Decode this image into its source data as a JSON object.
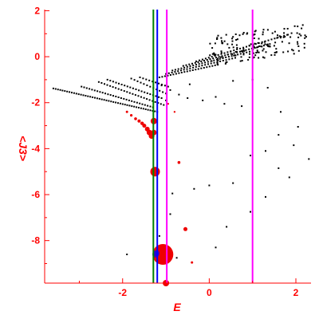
{
  "colors": {
    "axis": "#ff0000",
    "dots": "#000000",
    "highlight": "#ee0000",
    "vline_green": "#008000",
    "vline_blue": "#0000ff",
    "vline_magenta": "#ff00ff"
  },
  "chart_data": {
    "type": "scatter",
    "xlabel": "E",
    "ylabel": "<J3>",
    "xlim": [
      -3.8,
      2.35
    ],
    "ylim": [
      -9.85,
      2.05
    ],
    "xticks": [
      -2,
      0,
      2
    ],
    "yticks": [
      2,
      0,
      -2,
      -4,
      -6,
      -8
    ],
    "grid": false,
    "vertical_lines": [
      {
        "x": -1.29,
        "color": "#008000"
      },
      {
        "x": -1.2,
        "color": "#0000ff"
      },
      {
        "x": -0.98,
        "color": "#ff00ff"
      },
      {
        "x": 1.0,
        "color": "#ff00ff"
      }
    ],
    "branches": [
      {
        "x0": -3.6,
        "y0": -1.38,
        "x1": -1.2,
        "y1": -2.4,
        "n": 46
      },
      {
        "x0": -2.95,
        "y0": -1.3,
        "x1": -1.3,
        "y1": -2.2,
        "n": 28
      },
      {
        "x0": -2.55,
        "y0": -1.1,
        "x1": -1.05,
        "y1": -2.1,
        "n": 24
      },
      {
        "x0": -2.35,
        "y0": -1.0,
        "x1": -1.1,
        "y1": -1.8,
        "n": 20
      },
      {
        "x0": -1.8,
        "y0": -0.95,
        "x1": -1.0,
        "y1": -1.6,
        "n": 12
      },
      {
        "x0": -1.6,
        "y0": -0.9,
        "x1": -0.95,
        "y1": -1.3,
        "n": 10
      },
      {
        "x0": -1.15,
        "y0": -0.9,
        "x1": 0.2,
        "y1": -0.35,
        "n": 22
      },
      {
        "x0": -1.0,
        "y0": -0.75,
        "x1": 0.6,
        "y1": -0.05,
        "n": 24
      },
      {
        "x0": -0.85,
        "y0": -0.6,
        "x1": 1.0,
        "y1": 0.25,
        "n": 28
      },
      {
        "x0": -0.6,
        "y0": -0.4,
        "x1": 1.4,
        "y1": 0.55,
        "n": 30
      },
      {
        "x0": -0.3,
        "y0": -0.2,
        "x1": 1.8,
        "y1": 0.95,
        "n": 30
      }
    ],
    "cloud": {
      "x": [
        0.0,
        2.3
      ],
      "y": [
        -0.4,
        1.3
      ],
      "n": 160,
      "seed": 7
    },
    "scatter_points": [
      [
        -1.1,
        -1.25
      ],
      [
        -1.0,
        -1.9
      ],
      [
        -0.9,
        -1.45
      ],
      [
        -0.7,
        -1.65
      ],
      [
        -0.5,
        -1.8
      ],
      [
        -0.45,
        -1.2
      ],
      [
        -0.15,
        -1.9
      ],
      [
        0.15,
        -1.75
      ],
      [
        0.35,
        -2.05
      ],
      [
        0.75,
        -2.15
      ],
      [
        0.55,
        -1.05
      ],
      [
        1.0,
        -1.0
      ],
      [
        1.35,
        -1.35
      ],
      [
        1.65,
        -2.4
      ],
      [
        1.6,
        -3.4
      ],
      [
        1.95,
        -3.85
      ],
      [
        2.05,
        -3.05
      ],
      [
        2.3,
        -4.45
      ],
      [
        1.3,
        -4.1
      ],
      [
        1.6,
        -4.85
      ],
      [
        1.85,
        -5.25
      ],
      [
        0.55,
        -5.5
      ],
      [
        0.95,
        -4.3
      ],
      [
        1.3,
        -6.1
      ],
      [
        0.95,
        -6.75
      ],
      [
        0.0,
        -5.6
      ],
      [
        -0.35,
        -5.75
      ],
      [
        -0.85,
        -5.95
      ],
      [
        0.4,
        -7.4
      ],
      [
        -0.9,
        -6.85
      ],
      [
        0.15,
        -8.3
      ],
      [
        -1.9,
        -8.6
      ],
      [
        -0.75,
        -8.75
      ],
      [
        -1.15,
        -7.8
      ]
    ],
    "red_points": [
      [
        -1.9,
        -2.4,
        1.5
      ],
      [
        -1.8,
        -2.55,
        1.6
      ],
      [
        -1.7,
        -2.7,
        1.8
      ],
      [
        -1.62,
        -2.8,
        2
      ],
      [
        -1.55,
        -2.9,
        2.2
      ],
      [
        -1.5,
        -3.0,
        2.5
      ],
      [
        -1.43,
        -3.15,
        3
      ],
      [
        -1.38,
        -3.3,
        3.5
      ],
      [
        -1.33,
        -3.45,
        3.6
      ],
      [
        -1.28,
        -2.8,
        4
      ],
      [
        -1.28,
        -3.3,
        3.5
      ],
      [
        -1.25,
        -5.0,
        6
      ],
      [
        -0.95,
        -2.05,
        1.2
      ],
      [
        -0.8,
        -2.4,
        1.2
      ],
      [
        -0.7,
        -4.6,
        1.8
      ],
      [
        -0.55,
        -7.5,
        2.5
      ],
      [
        -0.4,
        -8.95,
        1.5
      ],
      [
        -1.07,
        -8.6,
        13
      ],
      [
        -1.0,
        -9.85,
        4
      ]
    ],
    "blue_points": [
      [
        -1.24,
        -8.6,
        4
      ],
      [
        -1.22,
        -8.55,
        4
      ]
    ]
  }
}
